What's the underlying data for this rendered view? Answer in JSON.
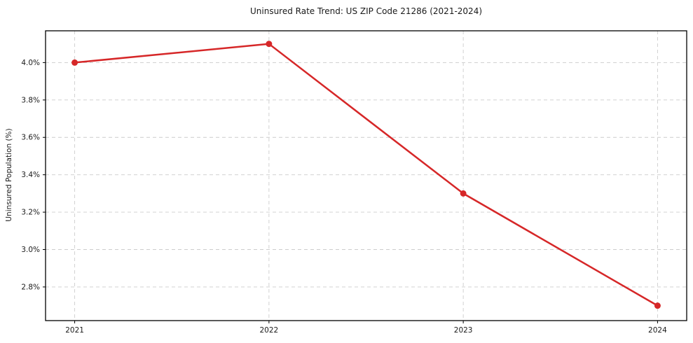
{
  "chart_data": {
    "type": "line",
    "title": "Uninsured Rate Trend: US ZIP Code 21286 (2021-2024)",
    "xlabel": "",
    "ylabel": "Uninsured Population (%)",
    "x": [
      2021,
      2022,
      2023,
      2024
    ],
    "values": [
      4.0,
      4.1,
      3.3,
      2.7
    ],
    "xticks": [
      {
        "value": 2021,
        "label": "2021"
      },
      {
        "value": 2022,
        "label": "2022"
      },
      {
        "value": 2023,
        "label": "2023"
      },
      {
        "value": 2024,
        "label": "2024"
      }
    ],
    "yticks": [
      {
        "value": 2.8,
        "label": "2.8%"
      },
      {
        "value": 3.0,
        "label": "3.0%"
      },
      {
        "value": 3.2,
        "label": "3.2%"
      },
      {
        "value": 3.4,
        "label": "3.4%"
      },
      {
        "value": 3.6,
        "label": "3.6%"
      },
      {
        "value": 3.8,
        "label": "3.8%"
      },
      {
        "value": 4.0,
        "label": "4.0%"
      }
    ],
    "xlim": [
      2020.85,
      2024.15
    ],
    "ylim": [
      2.62,
      4.17
    ],
    "grid": true,
    "grid_style": "dashed",
    "legend_position": "none",
    "colors": {
      "line": "#d62728",
      "marker": "#d62728",
      "grid": "#cccccc",
      "frame": "#000000",
      "text": "#1a1a1a",
      "background": "#ffffff"
    }
  }
}
